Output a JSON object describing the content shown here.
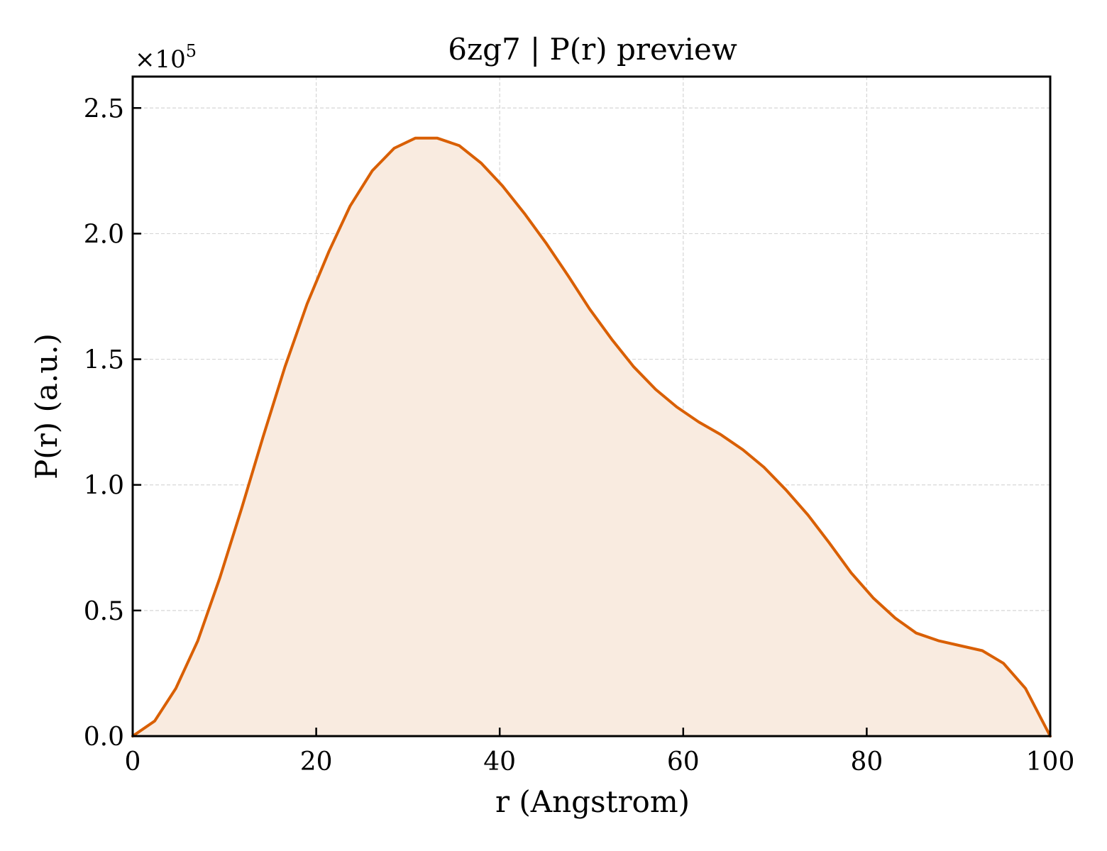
{
  "chart_data": {
    "type": "area",
    "title": "6zg7 | P(r) preview",
    "xlabel": "r (Angstrom)",
    "ylabel": "P(r) (a.u.)",
    "y_multiplier_label": "×10",
    "y_multiplier_exponent": "5",
    "xlim": [
      0,
      100
    ],
    "ylim": [
      0,
      2.625
    ],
    "x_ticks": [
      0,
      20,
      40,
      60,
      80,
      100
    ],
    "y_ticks": [
      0.0,
      0.5,
      1.0,
      1.5,
      2.0,
      2.5
    ],
    "y_tick_labels": [
      "0.0",
      "0.5",
      "1.0",
      "1.5",
      "2.0",
      "2.5"
    ],
    "grid": true,
    "legend": "none",
    "line_color": "#d95f02",
    "fill_color": "#f9ebe0",
    "series": [
      {
        "x": [
          0,
          2.4,
          4.7,
          7.1,
          9.5,
          11.9,
          14.2,
          16.6,
          19.0,
          21.4,
          23.7,
          26.1,
          28.5,
          30.8,
          33.2,
          35.6,
          38.0,
          40.3,
          42.7,
          45.1,
          47.5,
          49.8,
          52.2,
          54.6,
          57.0,
          59.3,
          61.7,
          64.1,
          66.5,
          68.8,
          71.2,
          73.6,
          75.9,
          78.3,
          80.7,
          83.1,
          85.4,
          87.8,
          90.2,
          92.6,
          94.9,
          97.3,
          100
        ],
        "values": [
          0.0,
          0.06,
          0.19,
          0.38,
          0.63,
          0.91,
          1.19,
          1.47,
          1.72,
          1.93,
          2.11,
          2.25,
          2.34,
          2.38,
          2.38,
          2.35,
          2.28,
          2.19,
          2.08,
          1.96,
          1.83,
          1.7,
          1.58,
          1.47,
          1.38,
          1.31,
          1.25,
          1.2,
          1.14,
          1.07,
          0.98,
          0.88,
          0.77,
          0.65,
          0.55,
          0.47,
          0.41,
          0.38,
          0.36,
          0.34,
          0.29,
          0.19,
          0.0
        ]
      }
    ]
  }
}
